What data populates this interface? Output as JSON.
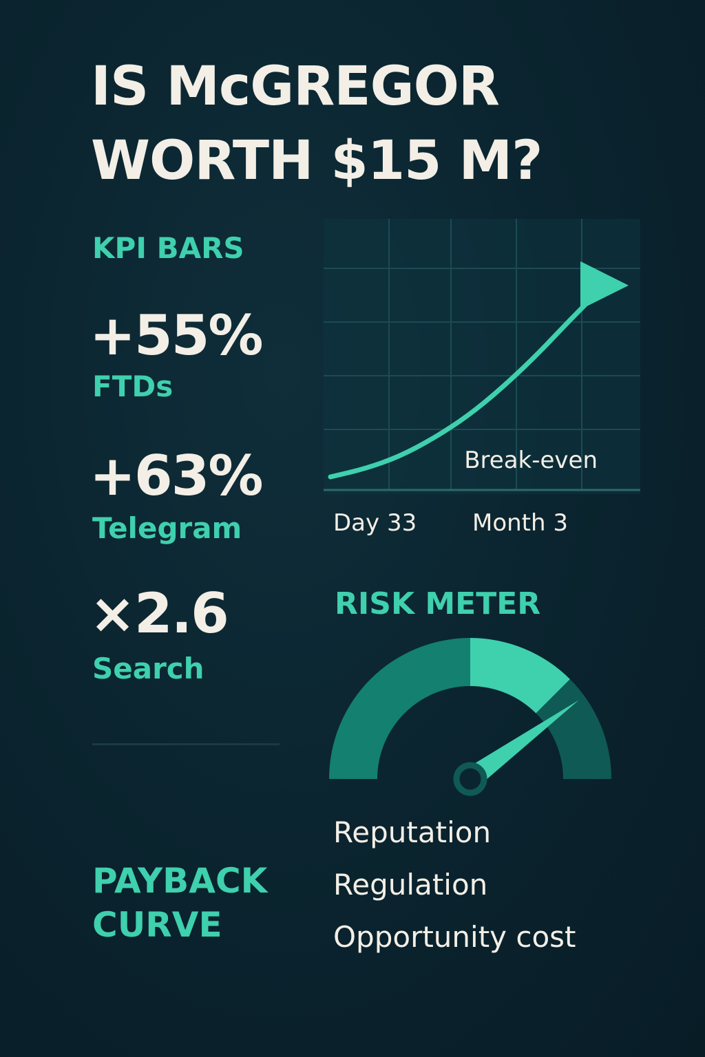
{
  "title": {
    "line1": "IS McGREGOR",
    "line2": "WORTH $15 M?"
  },
  "kpi": {
    "section_label": "KPI BARS",
    "items": [
      {
        "value": "+55%",
        "label": "FTDs"
      },
      {
        "value": "+63%",
        "label": "Telegram"
      },
      {
        "value": "×2.6",
        "label": "Search"
      }
    ]
  },
  "payback": {
    "section_label_line1": "PAYBACK",
    "section_label_line2": "CURVE",
    "break_even_label": "Break-even",
    "x_labels": [
      "Day 33",
      "Month 3"
    ]
  },
  "risk": {
    "section_label": "RISK METER",
    "level_fraction": 0.8,
    "items": [
      "Reputation",
      "Regulation",
      "Opportunity cost"
    ]
  },
  "colors": {
    "accent": "#3fd0ae",
    "text": "#f3efe6",
    "background": "#0b2530",
    "gauge_dark": "#138070",
    "gauge_light": "#3fd0ae",
    "gauge_deep": "#0f5a55"
  },
  "chart_data": {
    "type": "line",
    "title": "",
    "xlabel": "",
    "ylabel": "",
    "x_tick_labels": [
      "Day 33",
      "Month 3"
    ],
    "annotations": [
      "Break-even"
    ],
    "grid": true,
    "series": [
      {
        "values": [
          0.0,
          0.04,
          0.1,
          0.19,
          0.3,
          0.44,
          0.6,
          0.78,
          0.95
        ]
      }
    ]
  }
}
